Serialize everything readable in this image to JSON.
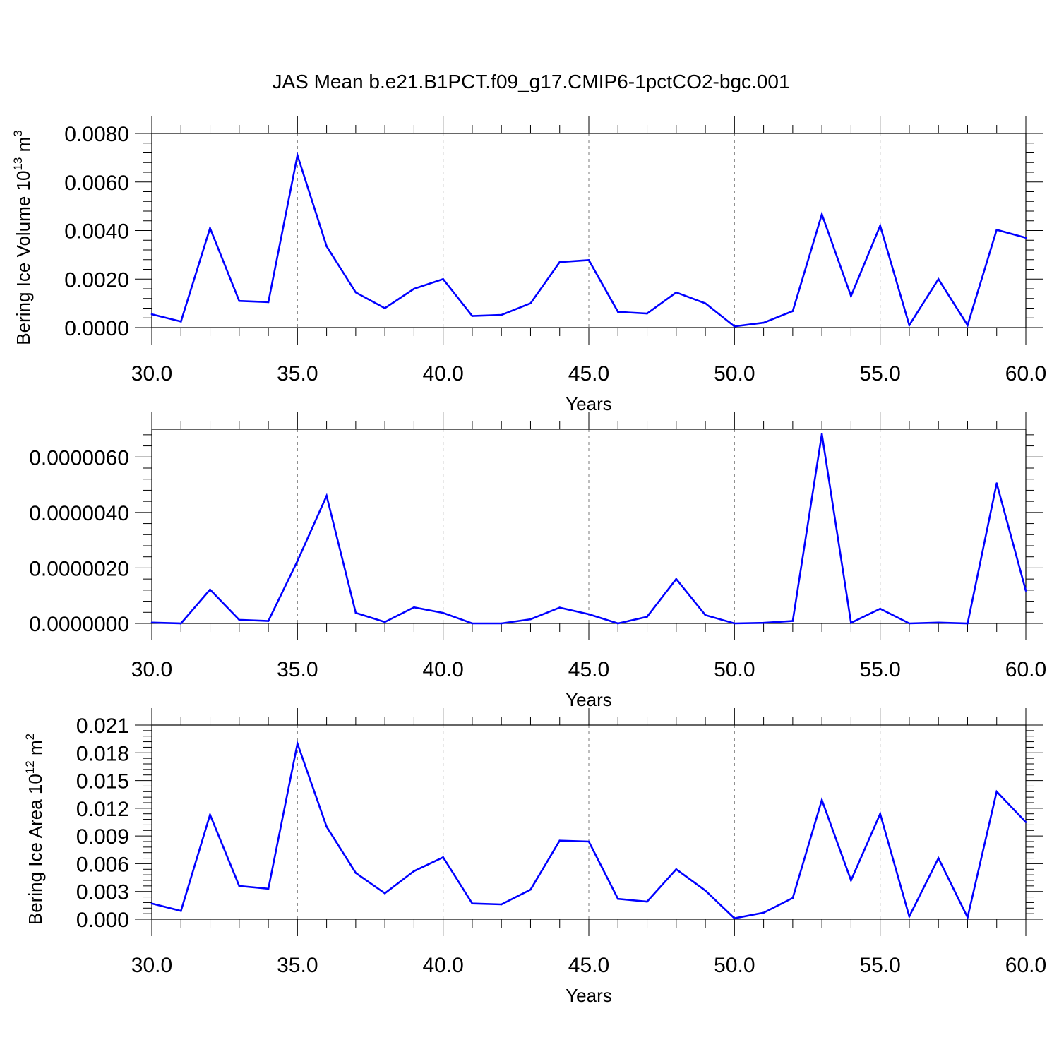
{
  "chart_data": [
    {
      "type": "line",
      "title": "JAS Mean b.e21.B1PCT.f09_g17.CMIP6-1pctCO2-bgc.001",
      "xlabel": "Years",
      "ylabel": {
        "text": "Bering Ice Volume 10",
        "sup": "13",
        "unit": " m",
        "unit_sup": "3"
      },
      "xlim": [
        30,
        60
      ],
      "ylim": [
        0,
        0.008
      ],
      "x_ticks": [
        30,
        35,
        40,
        45,
        50,
        55,
        60
      ],
      "x_tick_labels": [
        "30.0",
        "35.0",
        "40.0",
        "45.0",
        "50.0",
        "55.0",
        "60.0"
      ],
      "y_ticks": [
        0,
        0.002,
        0.004,
        0.006,
        0.008
      ],
      "y_tick_labels": [
        "0.0000",
        "0.0020",
        "0.0040",
        "0.0060",
        "0.0080"
      ],
      "grid": "vertical dashed at major x ticks",
      "color": "#0000ff",
      "x": [
        30,
        31,
        32,
        33,
        34,
        35,
        36,
        37,
        38,
        39,
        40,
        41,
        42,
        43,
        44,
        45,
        46,
        47,
        48,
        49,
        50,
        51,
        52,
        53,
        54,
        55,
        56,
        57,
        58,
        59,
        60
      ],
      "values": [
        0.00055,
        0.00025,
        0.0041,
        0.0011,
        0.00105,
        0.0071,
        0.00335,
        0.00145,
        0.0008,
        0.0016,
        0.002,
        0.00048,
        0.00052,
        0.001,
        0.0027,
        0.00278,
        0.00065,
        0.00058,
        0.00145,
        0.001,
        5e-05,
        0.0002,
        0.00068,
        0.00467,
        0.0013,
        0.0042,
        0.0001,
        0.002,
        0.0001,
        0.00403,
        0.0037
      ]
    },
    {
      "type": "line",
      "title": "",
      "xlabel": "Years",
      "ylabel": null,
      "xlim": [
        30,
        60
      ],
      "ylim": [
        0,
        7e-06
      ],
      "x_ticks": [
        30,
        35,
        40,
        45,
        50,
        55,
        60
      ],
      "x_tick_labels": [
        "30.0",
        "35.0",
        "40.0",
        "45.0",
        "50.0",
        "55.0",
        "60.0"
      ],
      "y_ticks": [
        0,
        2e-06,
        4e-06,
        6e-06
      ],
      "y_tick_labels": [
        "0.0000000",
        "0.0000020",
        "0.0000040",
        "0.0000060"
      ],
      "grid": "vertical dashed at major x ticks",
      "color": "#0000ff",
      "x": [
        30,
        31,
        32,
        33,
        34,
        35,
        36,
        37,
        38,
        39,
        40,
        41,
        42,
        43,
        44,
        45,
        46,
        47,
        48,
        49,
        50,
        51,
        52,
        53,
        54,
        55,
        56,
        57,
        58,
        59,
        60
      ],
      "values": [
        3e-08,
        0.0,
        1.22e-06,
        1.3e-07,
        9e-08,
        2.25e-06,
        4.6e-06,
        3.8e-07,
        5e-08,
        5.8e-07,
        3.8e-07,
        0.0,
        0.0,
        1.5e-07,
        5.7e-07,
        3.3e-07,
        0.0,
        2.4e-07,
        1.6e-06,
        3e-07,
        0.0,
        2e-08,
        9e-08,
        6.83e-06,
        2e-08,
        5.3e-07,
        0.0,
        3e-08,
        0.0,
        5.05e-06,
        1.18e-06
      ]
    },
    {
      "type": "line",
      "title": "",
      "xlabel": "Years",
      "ylabel": {
        "text": "Bering Ice Area 10",
        "sup": "12",
        "unit": " m",
        "unit_sup": "2"
      },
      "xlim": [
        30,
        60
      ],
      "ylim": [
        0,
        0.021
      ],
      "x_ticks": [
        30,
        35,
        40,
        45,
        50,
        55,
        60
      ],
      "x_tick_labels": [
        "30.0",
        "35.0",
        "40.0",
        "45.0",
        "50.0",
        "55.0",
        "60.0"
      ],
      "y_ticks": [
        0,
        0.003,
        0.006,
        0.009,
        0.012,
        0.015,
        0.018,
        0.021
      ],
      "y_tick_labels": [
        "0.000",
        "0.003",
        "0.006",
        "0.009",
        "0.012",
        "0.015",
        "0.018",
        "0.021"
      ],
      "grid": "vertical dashed at major x ticks",
      "color": "#0000ff",
      "x": [
        30,
        31,
        32,
        33,
        34,
        35,
        36,
        37,
        38,
        39,
        40,
        41,
        42,
        43,
        44,
        45,
        46,
        47,
        48,
        49,
        50,
        51,
        52,
        53,
        54,
        55,
        56,
        57,
        58,
        59,
        60
      ],
      "values": [
        0.0017,
        0.0009,
        0.0113,
        0.0036,
        0.0033,
        0.019,
        0.01,
        0.005,
        0.0028,
        0.0052,
        0.0067,
        0.0017,
        0.0016,
        0.0032,
        0.0085,
        0.0084,
        0.0022,
        0.0019,
        0.0054,
        0.0031,
        0.0001,
        0.0007,
        0.0023,
        0.0129,
        0.0042,
        0.0114,
        0.0003,
        0.0066,
        0.0002,
        0.0138,
        0.0105
      ]
    }
  ]
}
